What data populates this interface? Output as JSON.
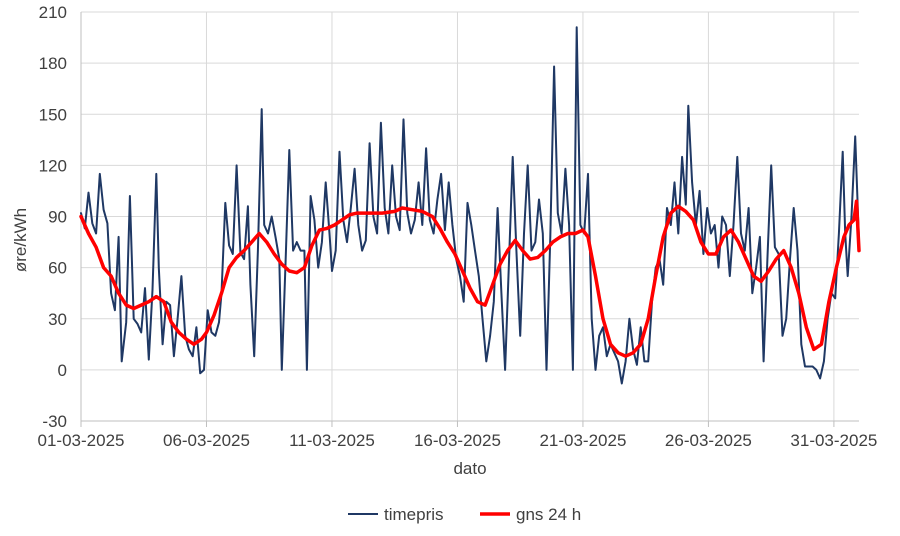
{
  "chart_data": {
    "type": "line",
    "xlabel": "dato",
    "ylabel": "øre/kWh",
    "ylim": [
      -30,
      210
    ],
    "yticks": [
      -30,
      0,
      30,
      60,
      90,
      120,
      150,
      180,
      210
    ],
    "xlim_day": [
      1,
      32
    ],
    "xtick_days": [
      1,
      6,
      11,
      16,
      21,
      26,
      31
    ],
    "xtick_labels": [
      "01-03-2025",
      "06-03-2025",
      "11-03-2025",
      "16-03-2025",
      "21-03-2025",
      "26-03-2025",
      "31-03-2025"
    ],
    "grid": "vertical and horizontal major gridlines",
    "legend_position": "bottom",
    "series": [
      {
        "name": "timepris",
        "color": "#1F3864",
        "note": "hourly price, approximate trace read from chart (x in day-of-March, y in øre/kWh)",
        "points": [
          [
            1.0,
            92
          ],
          [
            1.15,
            83
          ],
          [
            1.3,
            104
          ],
          [
            1.45,
            86
          ],
          [
            1.6,
            80
          ],
          [
            1.75,
            115
          ],
          [
            1.9,
            94
          ],
          [
            2.05,
            86
          ],
          [
            2.2,
            45
          ],
          [
            2.35,
            35
          ],
          [
            2.5,
            78
          ],
          [
            2.62,
            5
          ],
          [
            2.8,
            28
          ],
          [
            2.95,
            102
          ],
          [
            3.1,
            30
          ],
          [
            3.25,
            27
          ],
          [
            3.4,
            22
          ],
          [
            3.55,
            48
          ],
          [
            3.7,
            6
          ],
          [
            3.85,
            47
          ],
          [
            4.0,
            115
          ],
          [
            4.1,
            60
          ],
          [
            4.25,
            15
          ],
          [
            4.4,
            40
          ],
          [
            4.55,
            38
          ],
          [
            4.7,
            8
          ],
          [
            4.85,
            30
          ],
          [
            5.0,
            55
          ],
          [
            5.15,
            20
          ],
          [
            5.3,
            12
          ],
          [
            5.45,
            8
          ],
          [
            5.6,
            25
          ],
          [
            5.75,
            -2
          ],
          [
            5.9,
            0
          ],
          [
            6.05,
            35
          ],
          [
            6.2,
            22
          ],
          [
            6.35,
            20
          ],
          [
            6.5,
            28
          ],
          [
            6.6,
            45
          ],
          [
            6.75,
            98
          ],
          [
            6.9,
            73
          ],
          [
            7.05,
            68
          ],
          [
            7.2,
            120
          ],
          [
            7.35,
            69
          ],
          [
            7.5,
            65
          ],
          [
            7.65,
            96
          ],
          [
            7.75,
            50
          ],
          [
            7.9,
            8
          ],
          [
            8.05,
            70
          ],
          [
            8.2,
            153
          ],
          [
            8.3,
            85
          ],
          [
            8.45,
            80
          ],
          [
            8.6,
            90
          ],
          [
            8.75,
            78
          ],
          [
            8.9,
            65
          ],
          [
            9.0,
            0
          ],
          [
            9.15,
            62
          ],
          [
            9.3,
            129
          ],
          [
            9.45,
            70
          ],
          [
            9.6,
            75
          ],
          [
            9.75,
            70
          ],
          [
            9.9,
            70
          ],
          [
            10.0,
            0
          ],
          [
            10.15,
            102
          ],
          [
            10.3,
            88
          ],
          [
            10.45,
            60
          ],
          [
            10.6,
            75
          ],
          [
            10.75,
            110
          ],
          [
            10.9,
            80
          ],
          [
            11.0,
            58
          ],
          [
            11.15,
            70
          ],
          [
            11.3,
            128
          ],
          [
            11.45,
            88
          ],
          [
            11.6,
            75
          ],
          [
            11.75,
            95
          ],
          [
            11.9,
            118
          ],
          [
            12.05,
            85
          ],
          [
            12.2,
            70
          ],
          [
            12.35,
            76
          ],
          [
            12.5,
            133
          ],
          [
            12.65,
            90
          ],
          [
            12.8,
            80
          ],
          [
            12.95,
            145
          ],
          [
            13.1,
            95
          ],
          [
            13.25,
            80
          ],
          [
            13.4,
            120
          ],
          [
            13.55,
            90
          ],
          [
            13.7,
            82
          ],
          [
            13.85,
            147
          ],
          [
            14.0,
            92
          ],
          [
            14.15,
            80
          ],
          [
            14.3,
            88
          ],
          [
            14.45,
            110
          ],
          [
            14.6,
            85
          ],
          [
            14.75,
            130
          ],
          [
            14.9,
            88
          ],
          [
            15.05,
            80
          ],
          [
            15.2,
            100
          ],
          [
            15.35,
            115
          ],
          [
            15.5,
            82
          ],
          [
            15.65,
            110
          ],
          [
            15.8,
            85
          ],
          [
            15.95,
            65
          ],
          [
            16.1,
            55
          ],
          [
            16.25,
            40
          ],
          [
            16.4,
            98
          ],
          [
            16.55,
            85
          ],
          [
            16.7,
            70
          ],
          [
            16.85,
            55
          ],
          [
            17.0,
            30
          ],
          [
            17.15,
            5
          ],
          [
            17.3,
            20
          ],
          [
            17.45,
            40
          ],
          [
            17.6,
            95
          ],
          [
            17.75,
            45
          ],
          [
            17.9,
            0
          ],
          [
            18.05,
            62
          ],
          [
            18.2,
            125
          ],
          [
            18.35,
            70
          ],
          [
            18.5,
            20
          ],
          [
            18.65,
            80
          ],
          [
            18.8,
            120
          ],
          [
            18.95,
            70
          ],
          [
            19.1,
            75
          ],
          [
            19.25,
            100
          ],
          [
            19.4,
            80
          ],
          [
            19.55,
            0
          ],
          [
            19.7,
            78
          ],
          [
            19.85,
            178
          ],
          [
            20.0,
            92
          ],
          [
            20.15,
            80
          ],
          [
            20.3,
            118
          ],
          [
            20.45,
            85
          ],
          [
            20.6,
            0
          ],
          [
            20.75,
            201
          ],
          [
            20.9,
            85
          ],
          [
            21.05,
            80
          ],
          [
            21.2,
            115
          ],
          [
            21.35,
            30
          ],
          [
            21.5,
            0
          ],
          [
            21.65,
            20
          ],
          [
            21.8,
            25
          ],
          [
            21.95,
            8
          ],
          [
            22.1,
            15
          ],
          [
            22.25,
            10
          ],
          [
            22.4,
            5
          ],
          [
            22.55,
            -8
          ],
          [
            22.7,
            5
          ],
          [
            22.85,
            30
          ],
          [
            23.0,
            12
          ],
          [
            23.15,
            3
          ],
          [
            23.3,
            25
          ],
          [
            23.45,
            5
          ],
          [
            23.6,
            5
          ],
          [
            23.75,
            40
          ],
          [
            23.9,
            60
          ],
          [
            24.05,
            65
          ],
          [
            24.2,
            50
          ],
          [
            24.35,
            95
          ],
          [
            24.5,
            85
          ],
          [
            24.65,
            110
          ],
          [
            24.8,
            80
          ],
          [
            24.95,
            125
          ],
          [
            25.1,
            97
          ],
          [
            25.2,
            155
          ],
          [
            25.35,
            110
          ],
          [
            25.5,
            85
          ],
          [
            25.65,
            105
          ],
          [
            25.8,
            68
          ],
          [
            25.95,
            95
          ],
          [
            26.1,
            80
          ],
          [
            26.25,
            85
          ],
          [
            26.4,
            60
          ],
          [
            26.55,
            90
          ],
          [
            26.7,
            85
          ],
          [
            26.85,
            55
          ],
          [
            27.0,
            85
          ],
          [
            27.15,
            125
          ],
          [
            27.3,
            80
          ],
          [
            27.45,
            70
          ],
          [
            27.6,
            95
          ],
          [
            27.75,
            45
          ],
          [
            27.9,
            60
          ],
          [
            28.05,
            78
          ],
          [
            28.2,
            5
          ],
          [
            28.35,
            65
          ],
          [
            28.5,
            120
          ],
          [
            28.65,
            72
          ],
          [
            28.8,
            68
          ],
          [
            28.95,
            20
          ],
          [
            29.1,
            30
          ],
          [
            29.25,
            65
          ],
          [
            29.4,
            95
          ],
          [
            29.55,
            70
          ],
          [
            29.7,
            15
          ],
          [
            29.85,
            2
          ],
          [
            30.0,
            2
          ],
          [
            30.15,
            2
          ],
          [
            30.3,
            0
          ],
          [
            30.45,
            -5
          ],
          [
            30.6,
            5
          ],
          [
            30.75,
            30
          ],
          [
            30.9,
            45
          ],
          [
            31.05,
            42
          ],
          [
            31.2,
            80
          ],
          [
            31.35,
            128
          ],
          [
            31.45,
            80
          ],
          [
            31.55,
            55
          ],
          [
            31.7,
            90
          ],
          [
            31.85,
            137
          ],
          [
            32.0,
            75
          ]
        ]
      },
      {
        "name": "gns 24 h",
        "color": "#FF0000",
        "note": "24-hour moving average, approximate",
        "points": [
          [
            1.0,
            90
          ],
          [
            1.3,
            80
          ],
          [
            1.6,
            72
          ],
          [
            1.9,
            60
          ],
          [
            2.2,
            55
          ],
          [
            2.5,
            45
          ],
          [
            2.8,
            38
          ],
          [
            3.1,
            36
          ],
          [
            3.4,
            38
          ],
          [
            3.7,
            40
          ],
          [
            4.0,
            43
          ],
          [
            4.3,
            40
          ],
          [
            4.6,
            28
          ],
          [
            4.9,
            22
          ],
          [
            5.2,
            18
          ],
          [
            5.5,
            15
          ],
          [
            5.8,
            18
          ],
          [
            6.0,
            22
          ],
          [
            6.3,
            32
          ],
          [
            6.6,
            45
          ],
          [
            6.9,
            60
          ],
          [
            7.2,
            66
          ],
          [
            7.5,
            70
          ],
          [
            7.8,
            75
          ],
          [
            8.1,
            80
          ],
          [
            8.4,
            75
          ],
          [
            8.7,
            68
          ],
          [
            9.0,
            62
          ],
          [
            9.3,
            58
          ],
          [
            9.6,
            57
          ],
          [
            9.9,
            60
          ],
          [
            10.2,
            73
          ],
          [
            10.5,
            82
          ],
          [
            10.8,
            83
          ],
          [
            11.1,
            85
          ],
          [
            11.4,
            88
          ],
          [
            11.7,
            91
          ],
          [
            12.0,
            92
          ],
          [
            12.5,
            92
          ],
          [
            13.0,
            92
          ],
          [
            13.5,
            93
          ],
          [
            13.8,
            95
          ],
          [
            14.2,
            94
          ],
          [
            14.6,
            93
          ],
          [
            15.0,
            90
          ],
          [
            15.3,
            83
          ],
          [
            15.6,
            75
          ],
          [
            15.9,
            68
          ],
          [
            16.2,
            58
          ],
          [
            16.5,
            48
          ],
          [
            16.8,
            40
          ],
          [
            17.1,
            38
          ],
          [
            17.4,
            50
          ],
          [
            17.7,
            62
          ],
          [
            18.0,
            70
          ],
          [
            18.3,
            76
          ],
          [
            18.6,
            70
          ],
          [
            18.9,
            65
          ],
          [
            19.2,
            66
          ],
          [
            19.5,
            70
          ],
          [
            19.8,
            75
          ],
          [
            20.1,
            78
          ],
          [
            20.4,
            80
          ],
          [
            20.7,
            80
          ],
          [
            21.0,
            82
          ],
          [
            21.2,
            78
          ],
          [
            21.5,
            55
          ],
          [
            21.8,
            30
          ],
          [
            22.1,
            15
          ],
          [
            22.4,
            10
          ],
          [
            22.7,
            8
          ],
          [
            23.0,
            10
          ],
          [
            23.3,
            15
          ],
          [
            23.6,
            30
          ],
          [
            23.9,
            55
          ],
          [
            24.2,
            78
          ],
          [
            24.5,
            92
          ],
          [
            24.8,
            96
          ],
          [
            25.1,
            93
          ],
          [
            25.4,
            88
          ],
          [
            25.7,
            75
          ],
          [
            26.0,
            68
          ],
          [
            26.3,
            68
          ],
          [
            26.6,
            78
          ],
          [
            26.9,
            82
          ],
          [
            27.2,
            75
          ],
          [
            27.5,
            65
          ],
          [
            27.8,
            55
          ],
          [
            28.1,
            52
          ],
          [
            28.4,
            58
          ],
          [
            28.7,
            65
          ],
          [
            29.0,
            70
          ],
          [
            29.3,
            60
          ],
          [
            29.6,
            45
          ],
          [
            29.9,
            25
          ],
          [
            30.2,
            12
          ],
          [
            30.5,
            15
          ],
          [
            30.8,
            40
          ],
          [
            31.1,
            60
          ],
          [
            31.4,
            78
          ],
          [
            31.6,
            85
          ],
          [
            31.8,
            88
          ],
          [
            31.9,
            99
          ],
          [
            32.0,
            70
          ]
        ]
      }
    ]
  }
}
